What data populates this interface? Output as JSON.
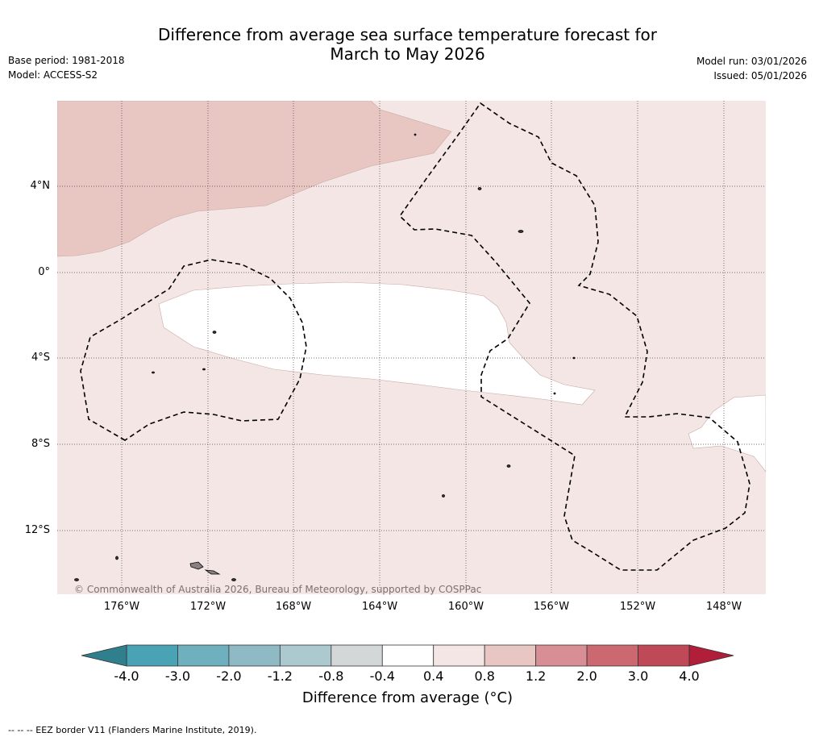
{
  "title_line1": "Difference from average sea surface temperature forecast for",
  "title_line2": "March to May 2026",
  "base_period": "Base period: 1981-2018",
  "model": "Model: ACCESS-S2",
  "model_run": "Model run: 03/01/2026",
  "issued": "Issued: 05/01/2026",
  "lat_labels": [
    "4°N",
    "0°",
    "4°S",
    "8°S",
    "12°S"
  ],
  "lon_labels": [
    "176°W",
    "172°W",
    "168°W",
    "164°W",
    "160°W",
    "156°W",
    "152°W",
    "148°W"
  ],
  "copyright": "© Commonwealth of Australia 2026, Bureau of Meteorology, supported by COSPPac",
  "colorbar": {
    "ticks": [
      "-4.0",
      "-3.0",
      "-2.0",
      "-1.2",
      "-0.8",
      "-0.4",
      "0.4",
      "0.8",
      "1.2",
      "2.0",
      "3.0",
      "4.0"
    ],
    "colors": [
      "#2f7f8c",
      "#4aa3b5",
      "#6fb0bf",
      "#8fb9c5",
      "#abc9cf",
      "#d4d7d8",
      "#ffffff",
      "#f4e6e5",
      "#e8c6c2",
      "#d88e95",
      "#cc6870",
      "#c04957",
      "#b01e3a"
    ],
    "label": "Difference from average (°C)"
  },
  "footer": "--  --  -- EEZ border V11 (Flanders Marine Institute, 2019)."
}
